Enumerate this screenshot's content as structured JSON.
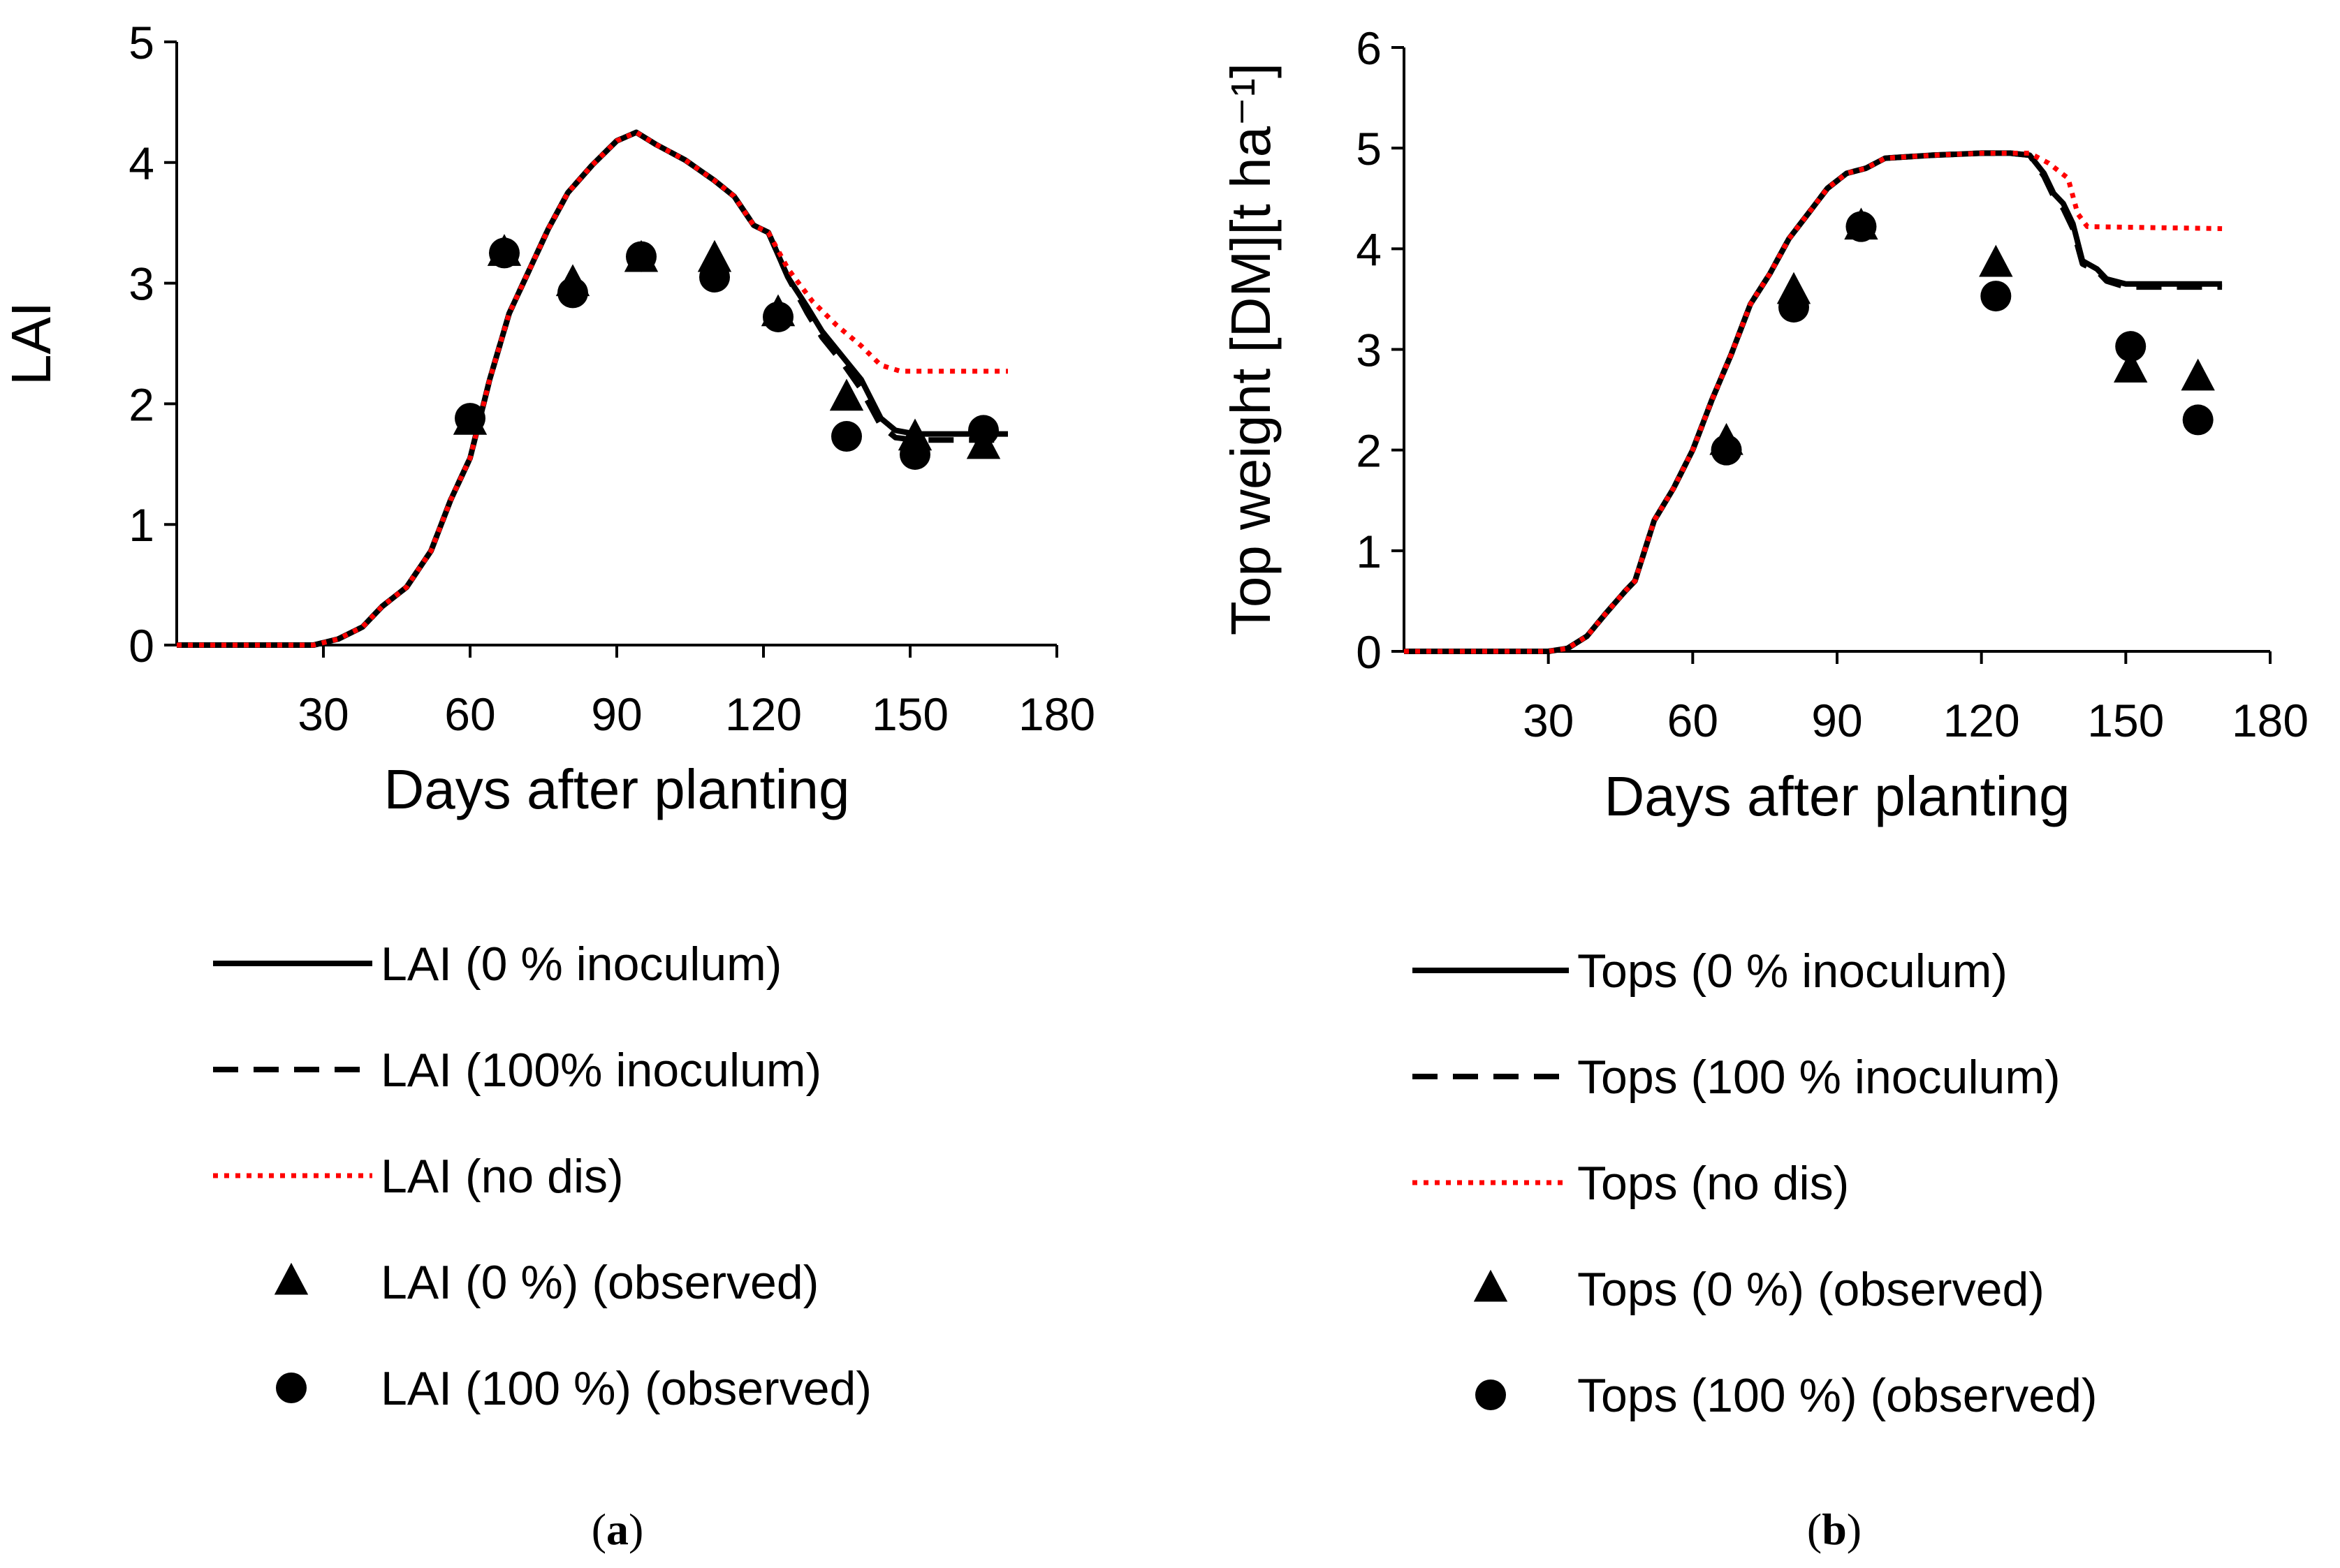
{
  "chart_data": [
    {
      "id": "a",
      "type": "line",
      "caption_letter": "a",
      "xlabel": "Days after planting",
      "ylabel": "LAI",
      "xlim": [
        0,
        180
      ],
      "ylim": [
        0,
        5
      ],
      "xticks": [
        30,
        60,
        90,
        120,
        150,
        180
      ],
      "yticks": [
        0,
        1,
        2,
        3,
        4,
        5
      ],
      "series": [
        {
          "name": "LAI (0 %  inoculum)",
          "style": "solid",
          "color": "#000000",
          "points": [
            [
              0,
              0
            ],
            [
              28,
              0
            ],
            [
              33,
              0.05
            ],
            [
              38,
              0.15
            ],
            [
              42,
              0.32
            ],
            [
              47,
              0.48
            ],
            [
              52,
              0.78
            ],
            [
              56,
              1.2
            ],
            [
              60,
              1.55
            ],
            [
              64,
              2.2
            ],
            [
              68,
              2.75
            ],
            [
              72,
              3.1
            ],
            [
              76,
              3.45
            ],
            [
              80,
              3.75
            ],
            [
              85,
              3.98
            ],
            [
              90,
              4.18
            ],
            [
              94,
              4.25
            ],
            [
              98,
              4.15
            ],
            [
              104,
              4.02
            ],
            [
              110,
              3.85
            ],
            [
              114,
              3.72
            ],
            [
              118,
              3.48
            ],
            [
              121,
              3.42
            ],
            [
              125,
              3.05
            ],
            [
              129,
              2.8
            ],
            [
              132,
              2.6
            ],
            [
              136,
              2.4
            ],
            [
              140,
              2.2
            ],
            [
              144,
              1.88
            ],
            [
              147,
              1.78
            ],
            [
              151,
              1.75
            ],
            [
              170,
              1.75
            ]
          ]
        },
        {
          "name": "LAI (100% inoculum)",
          "style": "dashed",
          "color": "#000000",
          "points": [
            [
              0,
              0
            ],
            [
              28,
              0
            ],
            [
              33,
              0.05
            ],
            [
              38,
              0.15
            ],
            [
              42,
              0.32
            ],
            [
              47,
              0.48
            ],
            [
              52,
              0.78
            ],
            [
              56,
              1.2
            ],
            [
              60,
              1.55
            ],
            [
              64,
              2.2
            ],
            [
              68,
              2.75
            ],
            [
              72,
              3.1
            ],
            [
              76,
              3.45
            ],
            [
              80,
              3.75
            ],
            [
              85,
              3.98
            ],
            [
              90,
              4.18
            ],
            [
              94,
              4.25
            ],
            [
              98,
              4.15
            ],
            [
              104,
              4.02
            ],
            [
              110,
              3.85
            ],
            [
              114,
              3.72
            ],
            [
              118,
              3.48
            ],
            [
              121,
              3.42
            ],
            [
              125,
              3.05
            ],
            [
              129,
              2.75
            ],
            [
              132,
              2.55
            ],
            [
              136,
              2.35
            ],
            [
              140,
              2.12
            ],
            [
              144,
              1.82
            ],
            [
              147,
              1.72
            ],
            [
              151,
              1.7
            ],
            [
              170,
              1.7
            ]
          ]
        },
        {
          "name": "LAI (no dis)",
          "style": "dotted",
          "color": "#ff0000",
          "points": [
            [
              0,
              0
            ],
            [
              28,
              0
            ],
            [
              33,
              0.05
            ],
            [
              38,
              0.15
            ],
            [
              42,
              0.32
            ],
            [
              47,
              0.48
            ],
            [
              52,
              0.78
            ],
            [
              56,
              1.2
            ],
            [
              60,
              1.55
            ],
            [
              64,
              2.2
            ],
            [
              68,
              2.75
            ],
            [
              72,
              3.1
            ],
            [
              76,
              3.45
            ],
            [
              80,
              3.75
            ],
            [
              85,
              3.98
            ],
            [
              90,
              4.18
            ],
            [
              94,
              4.25
            ],
            [
              98,
              4.15
            ],
            [
              104,
              4.02
            ],
            [
              110,
              3.85
            ],
            [
              114,
              3.72
            ],
            [
              118,
              3.48
            ],
            [
              121,
              3.42
            ],
            [
              125,
              3.12
            ],
            [
              130,
              2.85
            ],
            [
              135,
              2.65
            ],
            [
              140,
              2.48
            ],
            [
              144,
              2.32
            ],
            [
              148,
              2.27
            ],
            [
              170,
              2.27
            ]
          ]
        },
        {
          "name": "LAI (0 %) (observed)",
          "style": "triangle",
          "color": "#000000",
          "points": [
            [
              60,
              1.85
            ],
            [
              67,
              3.25
            ],
            [
              81,
              3.0
            ],
            [
              95,
              3.2
            ],
            [
              110,
              3.2
            ],
            [
              123,
              2.75
            ],
            [
              137,
              2.05
            ],
            [
              151,
              1.72
            ],
            [
              165,
              1.65
            ]
          ]
        },
        {
          "name": "LAI (100 %) (observed)",
          "style": "circle",
          "color": "#000000",
          "points": [
            [
              60,
              1.88
            ],
            [
              67,
              3.25
            ],
            [
              81,
              2.92
            ],
            [
              95,
              3.22
            ],
            [
              110,
              3.05
            ],
            [
              123,
              2.72
            ],
            [
              137,
              1.73
            ],
            [
              151,
              1.58
            ],
            [
              165,
              1.78
            ]
          ]
        }
      ]
    },
    {
      "id": "b",
      "type": "line",
      "caption_letter": "b",
      "xlabel": "Days after planting",
      "ylabel": "Top weight [DM][t ha⁻¹]",
      "xlim": [
        0,
        180
      ],
      "ylim": [
        0,
        6
      ],
      "xticks": [
        30,
        60,
        90,
        120,
        150,
        180
      ],
      "yticks": [
        0,
        1,
        2,
        3,
        4,
        5,
        6
      ],
      "series": [
        {
          "name": "Tops (0 % inoculum)",
          "style": "solid",
          "color": "#000000",
          "points": [
            [
              0,
              0
            ],
            [
              30,
              0
            ],
            [
              34,
              0.03
            ],
            [
              38,
              0.15
            ],
            [
              42,
              0.38
            ],
            [
              46,
              0.6
            ],
            [
              48,
              0.7
            ],
            [
              52,
              1.3
            ],
            [
              56,
              1.62
            ],
            [
              60,
              2.0
            ],
            [
              64,
              2.5
            ],
            [
              68,
              2.95
            ],
            [
              72,
              3.45
            ],
            [
              76,
              3.75
            ],
            [
              80,
              4.1
            ],
            [
              84,
              4.35
            ],
            [
              88,
              4.6
            ],
            [
              92,
              4.75
            ],
            [
              96,
              4.8
            ],
            [
              100,
              4.9
            ],
            [
              110,
              4.93
            ],
            [
              120,
              4.95
            ],
            [
              126,
              4.95
            ],
            [
              130,
              4.93
            ],
            [
              133,
              4.75
            ],
            [
              135,
              4.55
            ],
            [
              137,
              4.45
            ],
            [
              139,
              4.25
            ],
            [
              141,
              3.88
            ],
            [
              144,
              3.8
            ],
            [
              146,
              3.7
            ],
            [
              150,
              3.65
            ],
            [
              170,
              3.65
            ]
          ]
        },
        {
          "name": "Tops (100 % inoculum)",
          "style": "dashed",
          "color": "#000000",
          "points": [
            [
              0,
              0
            ],
            [
              30,
              0
            ],
            [
              34,
              0.03
            ],
            [
              38,
              0.15
            ],
            [
              42,
              0.38
            ],
            [
              46,
              0.6
            ],
            [
              48,
              0.7
            ],
            [
              52,
              1.3
            ],
            [
              56,
              1.62
            ],
            [
              60,
              2.0
            ],
            [
              64,
              2.5
            ],
            [
              68,
              2.95
            ],
            [
              72,
              3.45
            ],
            [
              76,
              3.75
            ],
            [
              80,
              4.1
            ],
            [
              84,
              4.35
            ],
            [
              88,
              4.6
            ],
            [
              92,
              4.75
            ],
            [
              96,
              4.8
            ],
            [
              100,
              4.9
            ],
            [
              110,
              4.93
            ],
            [
              120,
              4.95
            ],
            [
              126,
              4.95
            ],
            [
              130,
              4.93
            ],
            [
              133,
              4.72
            ],
            [
              135,
              4.52
            ],
            [
              137,
              4.4
            ],
            [
              139,
              4.2
            ],
            [
              141,
              3.85
            ],
            [
              144,
              3.78
            ],
            [
              146,
              3.68
            ],
            [
              150,
              3.62
            ],
            [
              170,
              3.62
            ]
          ]
        },
        {
          "name": "Tops (no dis)",
          "style": "dotted",
          "color": "#ff0000",
          "points": [
            [
              0,
              0
            ],
            [
              30,
              0
            ],
            [
              34,
              0.03
            ],
            [
              38,
              0.15
            ],
            [
              42,
              0.38
            ],
            [
              46,
              0.6
            ],
            [
              48,
              0.7
            ],
            [
              52,
              1.3
            ],
            [
              56,
              1.62
            ],
            [
              60,
              2.0
            ],
            [
              64,
              2.5
            ],
            [
              68,
              2.95
            ],
            [
              72,
              3.45
            ],
            [
              76,
              3.75
            ],
            [
              80,
              4.1
            ],
            [
              84,
              4.35
            ],
            [
              88,
              4.6
            ],
            [
              92,
              4.75
            ],
            [
              96,
              4.8
            ],
            [
              100,
              4.9
            ],
            [
              110,
              4.93
            ],
            [
              120,
              4.95
            ],
            [
              126,
              4.95
            ],
            [
              130,
              4.95
            ],
            [
              134,
              4.85
            ],
            [
              138,
              4.7
            ],
            [
              140,
              4.35
            ],
            [
              142,
              4.22
            ],
            [
              170,
              4.2
            ]
          ]
        },
        {
          "name": "Tops (0 %) (observed)",
          "style": "triangle",
          "color": "#000000",
          "points": [
            [
              67,
              2.08
            ],
            [
              81,
              3.58
            ],
            [
              95,
              4.22
            ],
            [
              123,
              3.85
            ],
            [
              151,
              2.8
            ],
            [
              165,
              2.72
            ]
          ]
        },
        {
          "name": "Tops (100 %) (observed)",
          "style": "circle",
          "color": "#000000",
          "points": [
            [
              67,
              2.0
            ],
            [
              81,
              3.42
            ],
            [
              95,
              4.22
            ],
            [
              123,
              3.53
            ],
            [
              151,
              3.03
            ],
            [
              165,
              2.3
            ]
          ]
        }
      ]
    }
  ]
}
